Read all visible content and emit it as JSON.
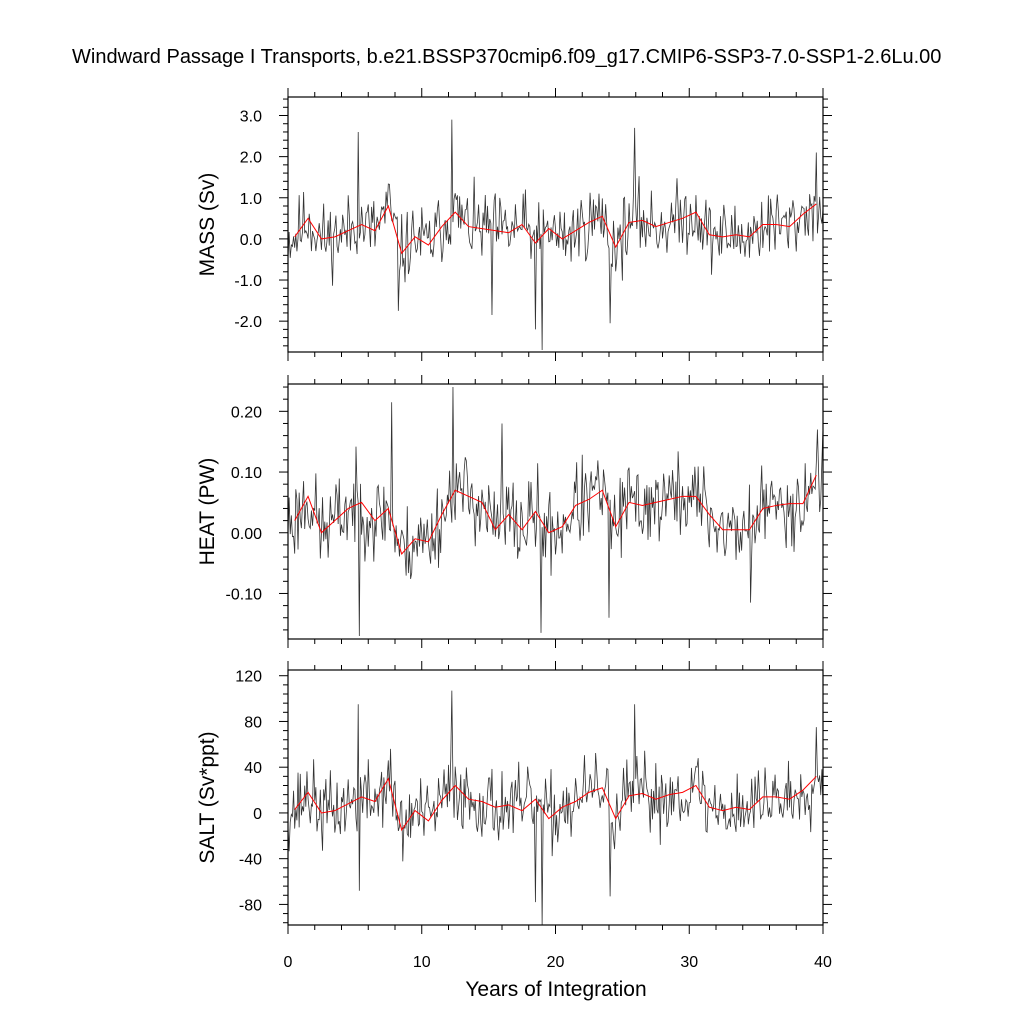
{
  "title": "Windward Passage I Transports, b.e21.BSSP370cmip6.f09_g17.CMIP6-SSP3-7.0-SSP1-2.6Lu.00",
  "chart_data": {
    "type": "line",
    "title": "Windward Passage I Transports, b.e21.BSSP370cmip6.f09_g17.CMIP6-SSP3-7.0-SSP1-2.6Lu.00",
    "xlabel": "Years of Integration",
    "xlim": [
      0,
      40
    ],
    "xticks": [
      0,
      10,
      20,
      30,
      40
    ],
    "xtick_labels": [
      "0",
      "10",
      "20",
      "30",
      "40"
    ],
    "grid": false,
    "legend": "none",
    "colors": {
      "monthly": "#333333",
      "annual": "#ff0000",
      "axes": "#000000"
    },
    "panels": [
      {
        "ylabel": "MASS (Sv)",
        "ylim": [
          -2.75,
          3.45
        ],
        "yticks": [
          3.0,
          2.0,
          1.0,
          0.0,
          -1.0,
          -2.0
        ],
        "ytick_labels": [
          "3.0",
          "2.0",
          "1.0",
          "0.0",
          "-1.0",
          "-2.0"
        ],
        "annual_x": [
          0.5,
          1.5,
          2.5,
          3.5,
          4.5,
          5.5,
          6.5,
          7.5,
          8.5,
          9.5,
          10.5,
          11.5,
          12.5,
          13.5,
          14.5,
          15.5,
          16.5,
          17.5,
          18.5,
          19.5,
          20.5,
          21.5,
          22.5,
          23.5,
          24.5,
          25.5,
          26.5,
          27.5,
          28.5,
          29.5,
          30.5,
          31.5,
          32.5,
          33.5,
          34.5,
          35.5,
          36.5,
          37.5,
          38.5,
          39.5
        ],
        "annual_y": [
          0.05,
          0.5,
          0.0,
          0.05,
          0.2,
          0.35,
          0.2,
          0.8,
          -0.35,
          0.05,
          -0.15,
          0.3,
          0.65,
          0.3,
          0.25,
          0.2,
          0.15,
          0.35,
          -0.1,
          0.25,
          0.0,
          0.2,
          0.4,
          0.55,
          -0.2,
          0.4,
          0.45,
          0.3,
          0.4,
          0.5,
          0.65,
          0.1,
          0.05,
          0.1,
          0.05,
          0.35,
          0.35,
          0.3,
          0.6,
          0.85
        ],
        "monthly_seed": 11,
        "monthly_noise": 0.75,
        "monthly_extremes": [
          [
            5.25,
            2.6
          ],
          [
            12.25,
            2.9
          ],
          [
            19.0,
            -2.7
          ],
          [
            18.5,
            -2.2
          ],
          [
            25.9,
            2.7
          ],
          [
            24.1,
            -2.05
          ],
          [
            39.5,
            2.1
          ],
          [
            8.25,
            -1.75
          ],
          [
            15.25,
            -1.85
          ]
        ]
      },
      {
        "ylabel": "HEAT (PW)",
        "ylim": [
          -0.175,
          0.245
        ],
        "yticks": [
          0.2,
          0.1,
          0.0,
          -0.1
        ],
        "ytick_labels": [
          "0.20",
          "0.10",
          "0.00",
          "-0.10"
        ],
        "annual_x": [
          0.5,
          1.5,
          2.5,
          3.5,
          4.5,
          5.5,
          6.5,
          7.5,
          8.5,
          9.5,
          10.5,
          11.5,
          12.5,
          13.5,
          14.5,
          15.5,
          16.5,
          17.5,
          18.5,
          19.5,
          20.5,
          21.5,
          22.5,
          23.5,
          24.5,
          25.5,
          26.5,
          27.5,
          28.5,
          29.5,
          30.5,
          31.5,
          32.5,
          33.5,
          34.5,
          35.5,
          36.5,
          37.5,
          38.5,
          39.5
        ],
        "annual_y": [
          0.02,
          0.06,
          0.0,
          0.02,
          0.04,
          0.05,
          0.02,
          0.04,
          -0.035,
          -0.01,
          -0.015,
          0.03,
          0.07,
          0.06,
          0.05,
          0.005,
          0.03,
          0.005,
          0.035,
          0.0,
          0.01,
          0.045,
          0.055,
          0.07,
          0.01,
          0.05,
          0.045,
          0.05,
          0.055,
          0.06,
          0.06,
          0.03,
          0.005,
          0.005,
          0.005,
          0.04,
          0.045,
          0.048,
          0.048,
          0.095
        ],
        "monthly_seed": 23,
        "monthly_noise": 0.06,
        "monthly_extremes": [
          [
            12.3,
            0.24
          ],
          [
            7.75,
            0.215
          ],
          [
            5.3,
            -0.17
          ],
          [
            18.9,
            -0.165
          ],
          [
            39.6,
            0.17
          ],
          [
            16.0,
            0.18
          ],
          [
            24.0,
            -0.14
          ],
          [
            34.6,
            -0.115
          ]
        ]
      },
      {
        "ylabel": "SALT (Sv*ppt)",
        "ylim": [
          -98,
          125
        ],
        "yticks": [
          120,
          80,
          40,
          0,
          -40,
          -80
        ],
        "ytick_labels": [
          "120",
          "80",
          "40",
          "0",
          "-40",
          "-80"
        ],
        "annual_x": [
          0.5,
          1.5,
          2.5,
          3.5,
          4.5,
          5.5,
          6.5,
          7.5,
          8.5,
          9.5,
          10.5,
          11.5,
          12.5,
          13.5,
          14.5,
          15.5,
          16.5,
          17.5,
          18.5,
          19.5,
          20.5,
          21.5,
          22.5,
          23.5,
          24.5,
          25.5,
          26.5,
          27.5,
          28.5,
          29.5,
          30.5,
          31.5,
          32.5,
          33.5,
          34.5,
          35.5,
          36.5,
          37.5,
          38.5,
          39.5
        ],
        "annual_y": [
          3,
          18,
          0,
          2,
          8,
          14,
          10,
          30,
          -15,
          2,
          -7,
          11,
          24,
          12,
          10,
          5,
          7,
          2,
          12,
          -5,
          5,
          10,
          18,
          22,
          -5,
          15,
          17,
          12,
          16,
          18,
          24,
          5,
          2,
          5,
          3,
          14,
          14,
          12,
          20,
          32
        ],
        "monthly_seed": 37,
        "monthly_noise": 28,
        "monthly_extremes": [
          [
            12.25,
            107
          ],
          [
            5.25,
            95
          ],
          [
            19.0,
            -98
          ],
          [
            18.5,
            -78
          ],
          [
            25.9,
            95
          ],
          [
            24.1,
            -73
          ],
          [
            5.3,
            -68
          ],
          [
            39.5,
            75
          ]
        ]
      }
    ]
  }
}
